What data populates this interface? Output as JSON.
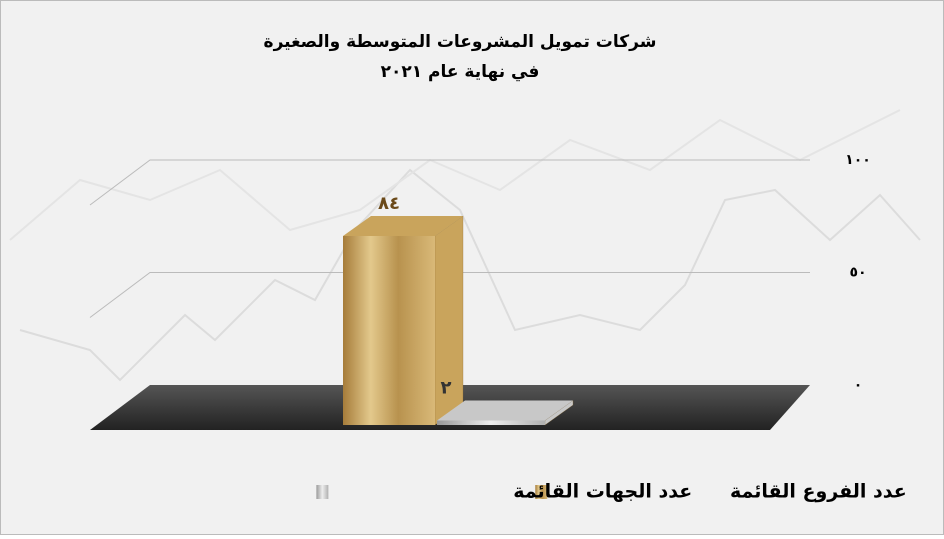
{
  "chart_data": {
    "type": "bar3d",
    "title": "شركات تمويل المشروعات المتوسطة والصغيرة",
    "subtitle": "في نهاية عام ٢٠٢١",
    "categories": [
      null
    ],
    "series": [
      {
        "name": "عدد الفروع القائمة",
        "color": "#c9a45c",
        "values": [
          84
        ],
        "value_labels": [
          "٨٤"
        ]
      },
      {
        "name": "عدد الجهات القائمة",
        "color": "#c8c8c8",
        "values": [
          2
        ],
        "value_labels": [
          "٢"
        ]
      }
    ],
    "ylim": [
      0,
      100
    ],
    "yticks": [
      {
        "value": 0,
        "label": "٠"
      },
      {
        "value": 50,
        "label": "٥٠"
      },
      {
        "value": 100,
        "label": "١٠٠"
      }
    ],
    "grid": true,
    "legend": "bottom"
  }
}
